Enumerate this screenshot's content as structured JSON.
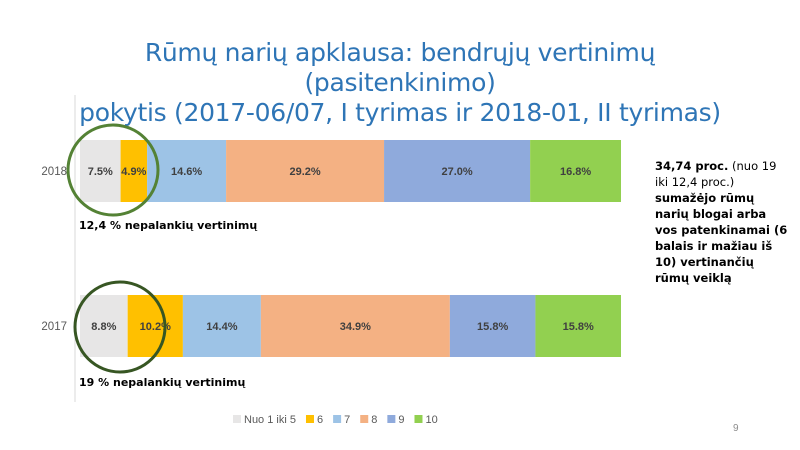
{
  "title": {
    "line1": "Rūmų narių apklausa: bendrųjų vertinimų (pasitenkinimo)",
    "line2": "pokytis (2017-06/07, I tyrimas ir 2018-01, II tyrimas)"
  },
  "side_note": {
    "bold_lead": "34,74 proc.",
    "normal": " (nuo 19 iki 12,4 proc.) ",
    "bold_rest": "sumažėjo rūmų narių blogai arba vos patenkinamai (6 balais ir mažiau iš 10) vertinančių rūmų veiklą"
  },
  "page_number": "9",
  "chart_data": {
    "type": "bar",
    "orientation": "horizontal",
    "stacked": true,
    "percent_stacked": true,
    "categories": [
      "2018",
      "2017"
    ],
    "series": [
      {
        "name": "Nuo 1 iki 5",
        "color": "#e7e6e6",
        "values": [
          7.5,
          8.8
        ],
        "labels": [
          "7.5%",
          "8.8%"
        ]
      },
      {
        "name": "6",
        "color": "#ffc000",
        "values": [
          4.9,
          10.2
        ],
        "labels": [
          "4.9%",
          "10.2%"
        ]
      },
      {
        "name": "7",
        "color": "#9dc3e6",
        "values": [
          14.6,
          14.4
        ],
        "labels": [
          "14.6%",
          "14.4%"
        ]
      },
      {
        "name": "8",
        "color": "#f4b183",
        "values": [
          29.2,
          34.9
        ],
        "labels": [
          "29.2%",
          "34.9%"
        ]
      },
      {
        "name": "9",
        "color": "#8faadc",
        "values": [
          27.0,
          15.8
        ],
        "labels": [
          "27.0%",
          "15.8%"
        ]
      },
      {
        "name": "10",
        "color": "#92d050",
        "values": [
          16.8,
          15.8
        ],
        "labels": [
          "16.8%",
          "15.8%"
        ]
      }
    ],
    "annotations": [
      {
        "category": "2018",
        "text": "12,4 % nepalankių vertinimų",
        "circle_color": "#548235"
      },
      {
        "category": "2017",
        "text": "19 % nepalankių vertinimų",
        "circle_color": "#375623"
      }
    ],
    "legend_position": "bottom",
    "grid": false
  }
}
